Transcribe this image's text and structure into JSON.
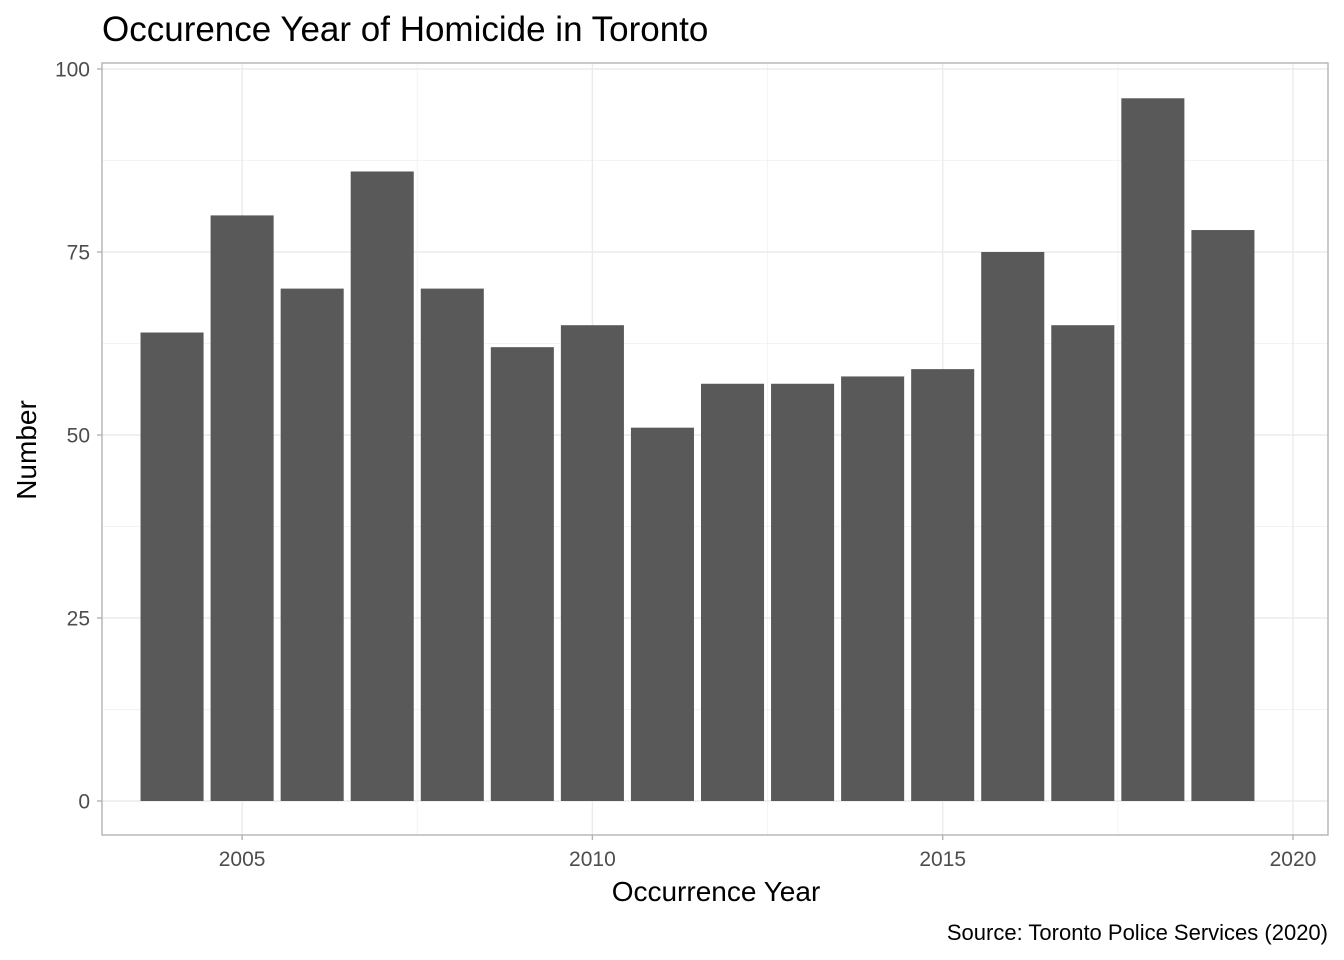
{
  "chart_data": {
    "type": "bar",
    "title": "Occurence Year of Homicide in Toronto",
    "xlabel": "Occurrence Year",
    "ylabel": "Number",
    "caption": "Source: Toronto Police Services (2020)",
    "categories": [
      2004,
      2005,
      2006,
      2007,
      2008,
      2009,
      2010,
      2011,
      2012,
      2013,
      2014,
      2015,
      2016,
      2017,
      2018,
      2019
    ],
    "values": [
      64,
      80,
      70,
      86,
      70,
      62,
      65,
      51,
      57,
      57,
      58,
      59,
      75,
      65,
      96,
      78
    ],
    "xlim": [
      2003.0,
      2020.5
    ],
    "ylim": [
      0,
      100
    ],
    "x_ticks": [
      2005,
      2010,
      2015,
      2020
    ],
    "y_ticks": [
      0,
      25,
      50,
      75,
      100
    ],
    "grid": true,
    "bar_color": "#595959"
  }
}
